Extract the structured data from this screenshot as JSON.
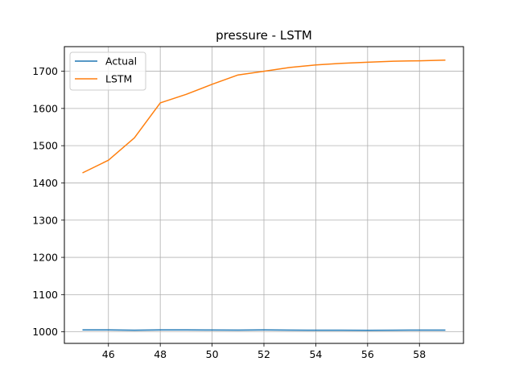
{
  "chart_data": {
    "type": "line",
    "title": "pressure - LSTM",
    "xlabel": "",
    "ylabel": "",
    "xlim": [
      44.3,
      59.7
    ],
    "ylim": [
      969,
      1766
    ],
    "xticks": [
      46,
      48,
      50,
      52,
      54,
      56,
      58
    ],
    "yticks": [
      1000,
      1100,
      1200,
      1300,
      1400,
      1500,
      1600,
      1700
    ],
    "grid": true,
    "legend_position": "upper left",
    "x": [
      45,
      46,
      47,
      48,
      49,
      50,
      51,
      52,
      53,
      54,
      55,
      56,
      57,
      58,
      59
    ],
    "series": [
      {
        "name": "Actual",
        "color": "#1f77b4",
        "values": [
          1005,
          1005,
          1004.5,
          1005,
          1005,
          1004.8,
          1004.6,
          1005,
          1004.7,
          1004.5,
          1004.4,
          1004.2,
          1004.4,
          1004.6,
          1004.6
        ]
      },
      {
        "name": "LSTM",
        "color": "#ff7f0e",
        "values": [
          1427,
          1461,
          1521,
          1615,
          1638,
          1665,
          1690,
          1700,
          1710,
          1717,
          1721,
          1724,
          1727,
          1728,
          1730
        ]
      }
    ]
  }
}
